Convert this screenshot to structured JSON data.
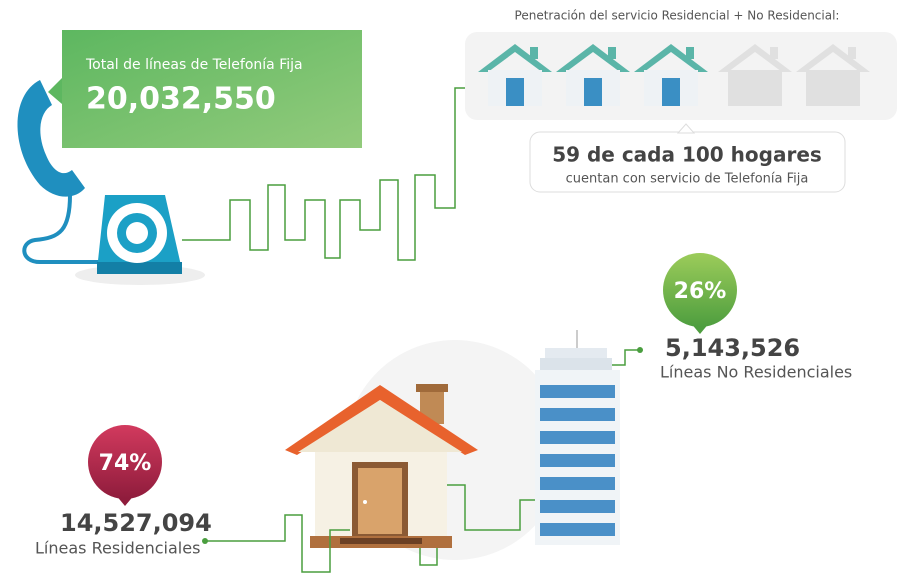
{
  "total": {
    "label": "Total de líneas de Telefonía Fija",
    "value": "20,032,550"
  },
  "penetration": {
    "title": "Penetración del servicio Residencial + No Residencial:",
    "headline": "59 de cada 100 hogares",
    "caption": "cuentan con servicio de Telefonía Fija"
  },
  "non_residential": {
    "percent": "26%",
    "value": "5,143,526",
    "label": "Líneas No Residenciales"
  },
  "residential": {
    "percent": "74%",
    "value": "14,527,094",
    "label": "Líneas Residenciales"
  }
}
